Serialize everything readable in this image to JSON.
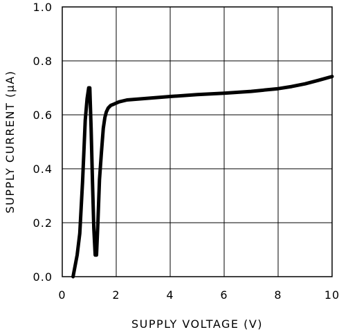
{
  "chart_data": {
    "type": "line",
    "title": "",
    "xlabel": "SUPPLY VOLTAGE (V)",
    "ylabel": "SUPPLY CURRENT (µA)",
    "xlim": [
      0,
      10
    ],
    "ylim": [
      0.0,
      1.0
    ],
    "x_ticks": [
      0,
      2,
      4,
      6,
      8,
      10
    ],
    "x_tick_labels": [
      "0",
      "2",
      "4",
      "6",
      "8",
      "10"
    ],
    "y_ticks": [
      0.0,
      0.2,
      0.4,
      0.6,
      0.8,
      1.0
    ],
    "y_tick_labels": [
      "0.0",
      "0.2",
      "0.4",
      "0.6",
      "0.8",
      "1.0"
    ],
    "grid": true,
    "legend": "none",
    "series": [
      {
        "color": "#000000",
        "x": [
          0.4,
          0.55,
          0.65,
          0.75,
          0.8,
          0.85,
          0.92,
          0.98,
          1.02,
          1.07,
          1.12,
          1.17,
          1.22,
          1.27,
          1.32,
          1.38,
          1.45,
          1.52,
          1.58,
          1.63,
          1.7,
          1.8,
          1.92,
          2.1,
          2.4,
          3.0,
          4.0,
          5.0,
          6.0,
          7.0,
          8.0,
          8.5,
          9.0,
          9.5,
          10.0
        ],
        "y": [
          0.0,
          0.08,
          0.16,
          0.35,
          0.46,
          0.58,
          0.66,
          0.7,
          0.7,
          0.55,
          0.35,
          0.18,
          0.08,
          0.08,
          0.2,
          0.36,
          0.46,
          0.55,
          0.59,
          0.61,
          0.625,
          0.635,
          0.64,
          0.648,
          0.655,
          0.66,
          0.668,
          0.675,
          0.68,
          0.687,
          0.697,
          0.705,
          0.715,
          0.728,
          0.742
        ]
      }
    ]
  }
}
